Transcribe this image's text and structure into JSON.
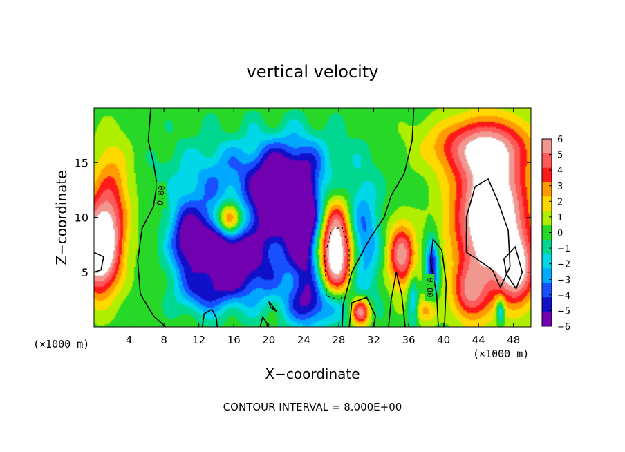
{
  "chart_data": {
    "type": "heatmap",
    "title": "vertical velocity",
    "xlabel": "X−coordinate",
    "ylabel": "Z−coordinate",
    "x_units_left": "(×1000 m)",
    "x_units_right": "(×1000 m)",
    "footer": "CONTOUR INTERVAL = 8.000E+00",
    "xlim": [
      0,
      50
    ],
    "ylim": [
      0,
      20
    ],
    "x_ticks": [
      4,
      8,
      12,
      16,
      20,
      24,
      28,
      32,
      36,
      40,
      44,
      48
    ],
    "y_ticks": [
      5,
      10,
      15
    ],
    "colorbar": {
      "ticks": [
        6,
        5,
        4,
        3,
        2,
        1,
        0,
        -1,
        -2,
        -3,
        -4,
        -5,
        -6
      ],
      "tick_labels": [
        "6",
        "5",
        "4",
        "3",
        "2",
        "1",
        "0",
        "−1",
        "−2",
        "−3",
        "−4",
        "−5",
        "−6"
      ],
      "colors": [
        "#f09890",
        "#ff5a5a",
        "#ff1a1a",
        "#ff9a00",
        "#ffd800",
        "#b0ee00",
        "#28d828",
        "#00d890",
        "#00d8e8",
        "#00a8ff",
        "#1850ff",
        "#1010c8",
        "#7000b0"
      ],
      "range": [
        -6,
        6
      ]
    },
    "contour_labels": [
      "0.00",
      "0.00"
    ],
    "features": [
      {
        "kind": "updraft",
        "x": 45.5,
        "z": 9.5,
        "peak": 9
      },
      {
        "kind": "updraft",
        "x": 27.5,
        "z": 7.0,
        "peak": 8
      },
      {
        "kind": "updraft",
        "x": 15.5,
        "z": 9.5,
        "peak": 7
      },
      {
        "kind": "updraft",
        "x": 1.0,
        "z": 6.5,
        "peak": 7
      },
      {
        "kind": "updraft",
        "x": 35.5,
        "z": 6.0,
        "peak": 6
      },
      {
        "kind": "updraft",
        "x": 30.5,
        "z": 1.3,
        "peak": 6
      },
      {
        "kind": "downdraft",
        "x": 24.5,
        "z": 7.5,
        "peak": -6
      },
      {
        "kind": "downdraft",
        "x": 14.5,
        "z": 7.5,
        "peak": -5
      },
      {
        "kind": "downdraft",
        "x": 20.0,
        "z": 11.0,
        "peak": -5
      },
      {
        "kind": "downdraft",
        "x": 38.5,
        "z": 5.5,
        "peak": -5
      }
    ]
  }
}
